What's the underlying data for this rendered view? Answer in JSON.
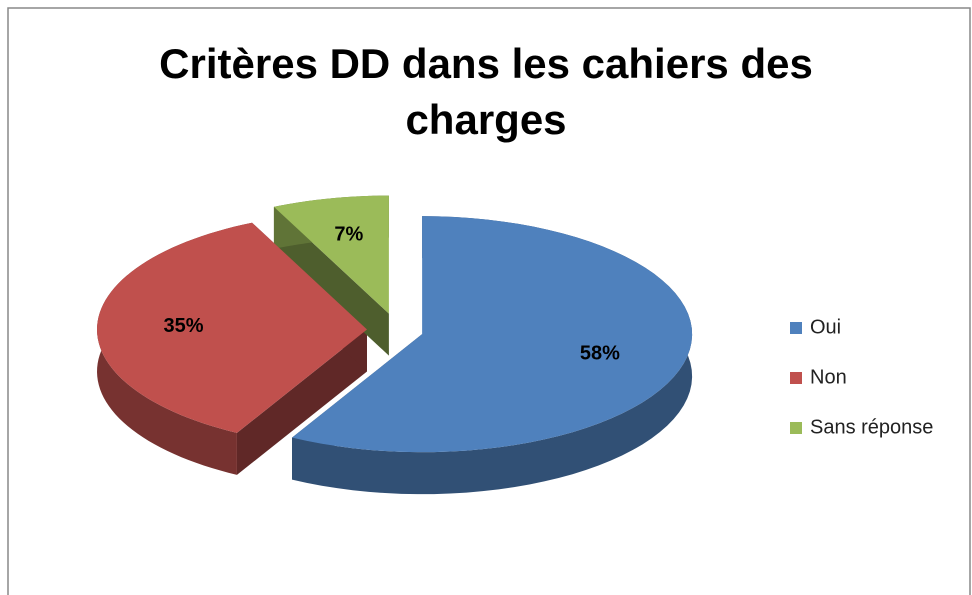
{
  "chart_data": {
    "type": "pie3d",
    "title": "Critères DD dans les cahiers des charges",
    "categories": [
      "Oui",
      "Non",
      "Sans réponse"
    ],
    "values": [
      58,
      35,
      7
    ],
    "value_labels": [
      "58%",
      "35%",
      "7%"
    ],
    "colors": [
      "#4f81bd",
      "#c0504d",
      "#9bbb59"
    ],
    "legend": "right"
  }
}
